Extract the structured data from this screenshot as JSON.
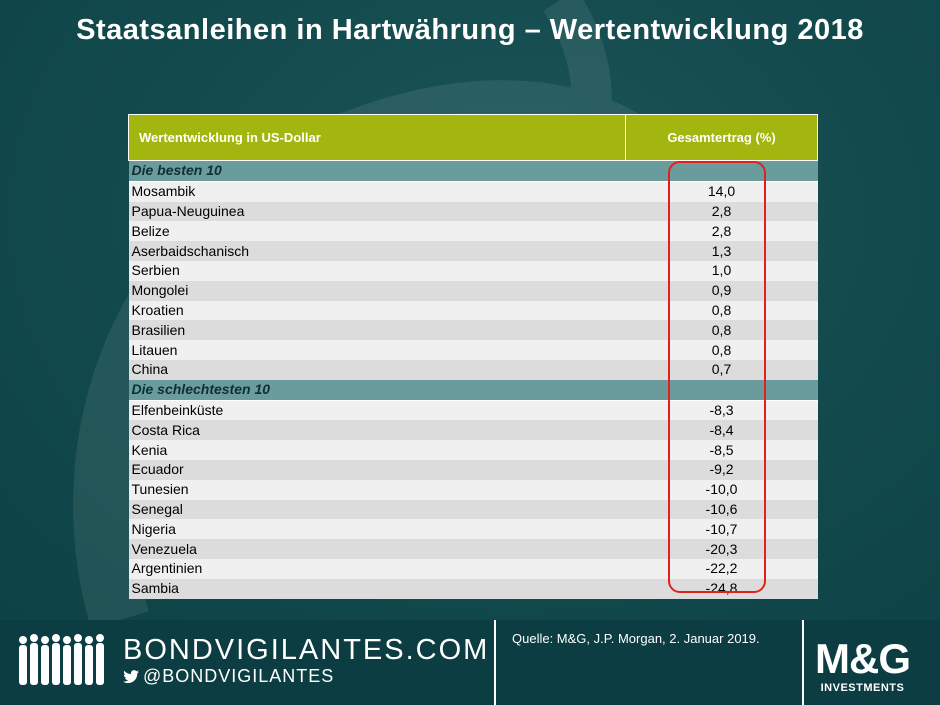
{
  "title": "Staatsanleihen  in Hartwährung  – Wertentwicklung  2018",
  "table": {
    "header_left": "Wertentwicklung in US-Dollar",
    "header_right": "Gesamtertrag (%)",
    "best_label": "Die besten 10",
    "worst_label": "Die schlechtesten  10",
    "best": [
      {
        "country": "Mosambik",
        "value": "14,0"
      },
      {
        "country": "Papua-Neuguinea",
        "value": "2,8"
      },
      {
        "country": "Belize",
        "value": "2,8"
      },
      {
        "country": "Aserbaidschanisch",
        "value": "1,3"
      },
      {
        "country": "Serbien",
        "value": "1,0"
      },
      {
        "country": "Mongolei",
        "value": "0,9"
      },
      {
        "country": "Kroatien",
        "value": "0,8"
      },
      {
        "country": "Brasilien",
        "value": "0,8"
      },
      {
        "country": "Litauen",
        "value": "0,8"
      },
      {
        "country": "China",
        "value": "0,7"
      }
    ],
    "worst": [
      {
        "country": "Elfenbeinküste",
        "value": "-8,3"
      },
      {
        "country": "Costa Rica",
        "value": "-8,4"
      },
      {
        "country": "Kenia",
        "value": "-8,5"
      },
      {
        "country": "Ecuador",
        "value": "-9,2"
      },
      {
        "country": "Tunesien",
        "value": "-10,0"
      },
      {
        "country": "Senegal",
        "value": "-10,6"
      },
      {
        "country": "Nigeria",
        "value": "-10,7"
      },
      {
        "country": "Venezuela",
        "value": "-20,3"
      },
      {
        "country": "Argentinien",
        "value": "-22,2"
      },
      {
        "country": "Sambia",
        "value": "-24,8"
      }
    ]
  },
  "footer": {
    "brand_url": "BONDVIGILANTES.COM",
    "brand_handle": "@BONDVIGILANTES",
    "source": "Quelle:  M&G, J.P. Morgan,  2. Januar  2019.",
    "logo_text": "M&G",
    "logo_sub": "INVESTMENTS"
  },
  "colors": {
    "background": "#10474a",
    "header_green": "#a3b60f",
    "section_teal": "#6a9c9d",
    "negative_red": "#e0231f",
    "highlight_red": "#e3201c"
  },
  "icons": [
    "twitter-bird-icon",
    "people-silhouette-icon"
  ]
}
